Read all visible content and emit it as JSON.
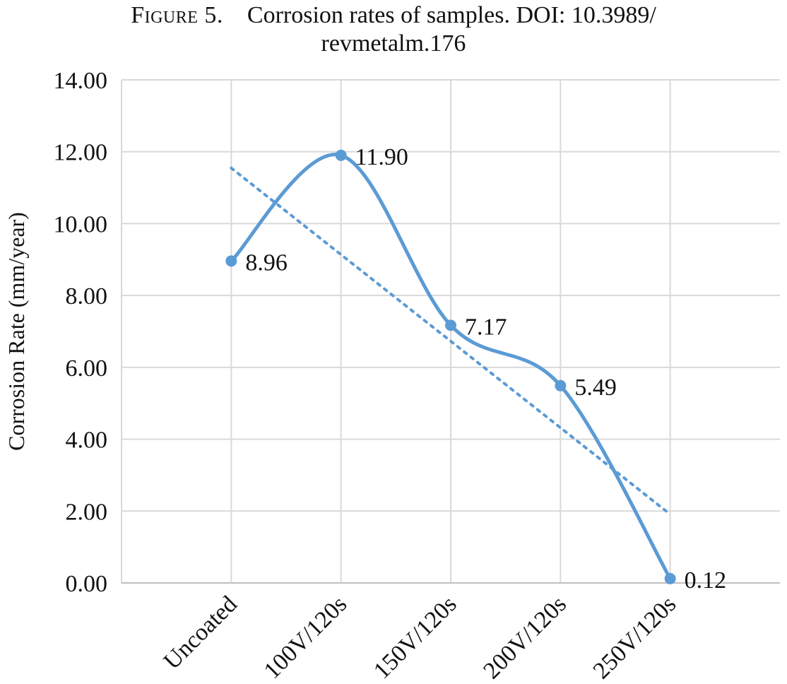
{
  "caption": {
    "figure_label": "Figure 5.",
    "text_line1": "Corrosion rates of samples. DOI: 10.3989/",
    "text_line2": "revmetalm.176"
  },
  "chart_data": {
    "type": "line",
    "title": "",
    "xlabel": "",
    "ylabel": "Corrosion Rate (mm/year)",
    "categories": [
      "Uncoated",
      "100V/120s",
      "150V/120s",
      "200V/120s",
      "250V/120s"
    ],
    "series": [
      {
        "values": [
          8.96,
          11.9,
          7.17,
          5.49,
          0.12
        ],
        "data_labels": [
          "8.96",
          "11.90",
          "7.17",
          "5.49",
          "0.12"
        ],
        "smooth": true,
        "color": "#5B9BD5",
        "markers": true
      }
    ],
    "trendline": {
      "type": "linear",
      "style": "dotted",
      "color": "#5B9BD5"
    },
    "ylim": [
      0,
      14
    ],
    "y_ticks": [
      0,
      2,
      4,
      6,
      8,
      10,
      12,
      14
    ],
    "y_tick_labels": [
      "0.00",
      "2.00",
      "4.00",
      "6.00",
      "8.00",
      "10.00",
      "12.00",
      "14.00"
    ],
    "grid": true,
    "grid_color": "#D9D9D9",
    "legend": "none"
  }
}
